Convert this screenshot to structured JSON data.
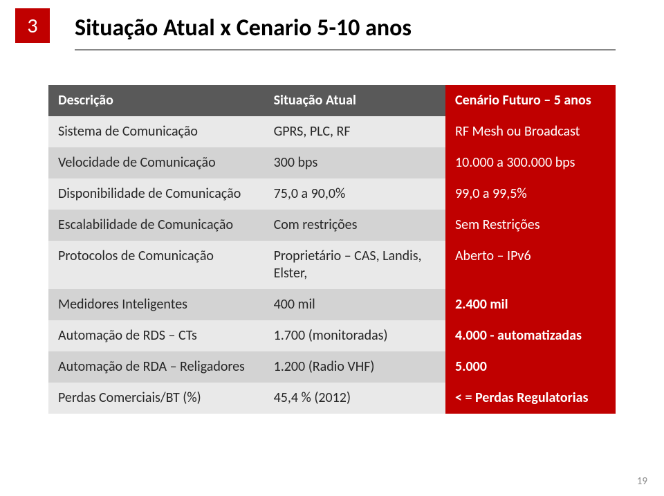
{
  "slide_number_badge": "3",
  "title": "Situação Atual x Cenario 5-10 anos",
  "page_number": "19",
  "table": {
    "header_bg_colors": [
      "#595959",
      "#595959",
      "#c00000"
    ],
    "header_text_color": "#ffffff",
    "col3_bg": "#c00000",
    "col3_text_color": "#ffffff",
    "row_band_a": "#e9e9e9",
    "row_band_b": "#d3d3d3",
    "columns": [
      "Descrição",
      "Situação Atual",
      "Cenário Futuro – 5 anos"
    ],
    "rows": [
      {
        "c1": "Sistema de Comunicação",
        "c2": "GPRS, PLC, RF",
        "c3": "RF Mesh ou Broadcast",
        "c3_bold": false
      },
      {
        "c1": "Velocidade de Comunicação",
        "c2": "300 bps",
        "c3": "10.000 a 300.000 bps",
        "c3_bold": false
      },
      {
        "c1": "Disponibilidade de Comunicação",
        "c2": "75,0 a 90,0%",
        "c3": "99,0 a 99,5%",
        "c3_bold": false
      },
      {
        "c1": "Escalabilidade de Comunicação",
        "c2": "Com restrições",
        "c3": "Sem Restrições",
        "c3_bold": false
      },
      {
        "c1": "Protocolos de Comunicação",
        "c2": "Proprietário – CAS, Landis, Elster,",
        "c3": "Aberto – IPv6",
        "c3_bold": false
      },
      {
        "c1": "Medidores Inteligentes",
        "c2": "400 mil",
        "c3": "2.400 mil",
        "c3_bold": true
      },
      {
        "c1": "Automação de RDS – CTs",
        "c2": "1.700 (monitoradas)",
        "c3": "4.000 - automatizadas",
        "c3_bold": true
      },
      {
        "c1": "Automação de RDA – Religadores",
        "c2": "1.200 (Radio VHF)",
        "c3": "5.000",
        "c3_bold": true
      },
      {
        "c1": "Perdas Comerciais/BT (%)",
        "c2": "45,4 %  (2012)",
        "c3": "< = Perdas Regulatorias",
        "c3_bold": true
      }
    ]
  }
}
